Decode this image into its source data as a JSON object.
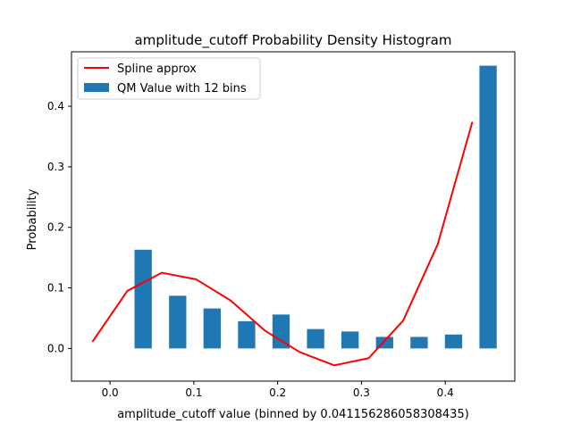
{
  "chart_data": {
    "type": "bar",
    "title": "amplitude_cutoff Probability Density Histogram",
    "xlabel": "amplitude_cutoff value (binned by 0.041156286058308435)",
    "ylabel": "Probability",
    "xlim": [
      -0.046,
      0.483
    ],
    "ylim": [
      -0.054,
      0.49
    ],
    "x_ticks": [
      {
        "value": 0.0,
        "label": "0.0"
      },
      {
        "value": 0.1,
        "label": "0.1"
      },
      {
        "value": 0.2,
        "label": "0.2"
      },
      {
        "value": 0.3,
        "label": "0.3"
      },
      {
        "value": 0.4,
        "label": "0.4"
      }
    ],
    "y_ticks": [
      {
        "value": 0.0,
        "label": "0.0"
      },
      {
        "value": 0.1,
        "label": "0.1"
      },
      {
        "value": 0.2,
        "label": "0.2"
      },
      {
        "value": 0.3,
        "label": "0.3"
      },
      {
        "value": 0.4,
        "label": "0.4"
      }
    ],
    "grid": false,
    "legend_position": "top-left",
    "bars": {
      "name": "QM Value with 12 bins",
      "color": "#1f77b4",
      "bar_width": 0.0206,
      "x": [
        0.0395,
        0.0807,
        0.1218,
        0.163,
        0.2041,
        0.2453,
        0.2864,
        0.3276,
        0.3688,
        0.4099,
        0.4511,
        0.451
      ],
      "values": [
        0.163,
        0.087,
        0.066,
        0.045,
        0.056,
        0.032,
        0.028,
        0.019,
        0.019,
        0.023,
        0.467,
        0.0
      ]
    },
    "line": {
      "name": "Spline approx",
      "color": "#ff0000",
      "x": [
        -0.0205,
        0.0206,
        0.0617,
        0.1029,
        0.144,
        0.1852,
        0.2263,
        0.2675,
        0.3087,
        0.3498,
        0.391,
        0.4321
      ],
      "y": [
        0.012,
        0.095,
        0.125,
        0.114,
        0.079,
        0.029,
        -0.006,
        -0.028,
        -0.016,
        0.046,
        0.172,
        0.373
      ]
    }
  }
}
